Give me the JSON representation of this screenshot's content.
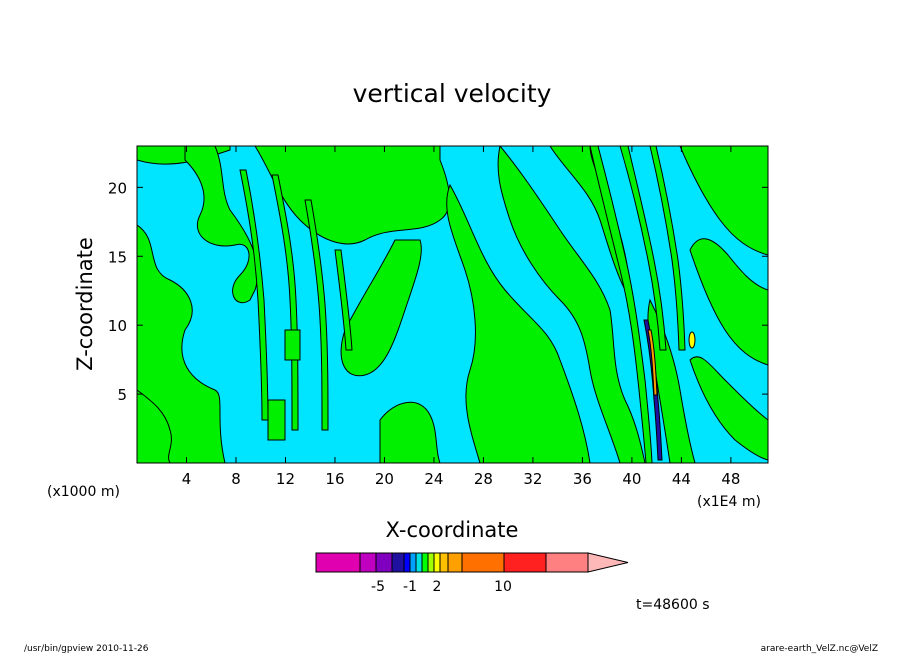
{
  "chart_data": {
    "type": "heatmap",
    "title": "vertical velocity",
    "xlabel": "X-coordinate",
    "ylabel": "Z-coordinate",
    "x_unit_left": "(x1000 m)",
    "x_unit_right": "(x1E4 m)",
    "xlim": [
      0,
      51
    ],
    "ylim": [
      0,
      23
    ],
    "x_ticks": [
      "4",
      "8",
      "12",
      "16",
      "20",
      "24",
      "28",
      "32",
      "36",
      "40",
      "44",
      "48"
    ],
    "y_ticks": [
      "5",
      "10",
      "15",
      "20"
    ],
    "colorbar": {
      "tick_labels": [
        "-5",
        "-1",
        "2",
        "10"
      ],
      "colors": [
        "#e000b0",
        "#c000c0",
        "#8000c0",
        "#2010a0",
        "#0000ff",
        "#00a0ff",
        "#00e0e0",
        "#00ff00",
        "#a0ff00",
        "#ffff00",
        "#ffc000",
        "#ffa000",
        "#ff7000",
        "#ff2020",
        "#ff8080",
        "#ffb8b8"
      ]
    },
    "time_label": "t=48600 s"
  },
  "footer": {
    "left": "/usr/bin/gpview   2010-11-26",
    "right": "arare-earth_VelZ.nc@VelZ"
  }
}
